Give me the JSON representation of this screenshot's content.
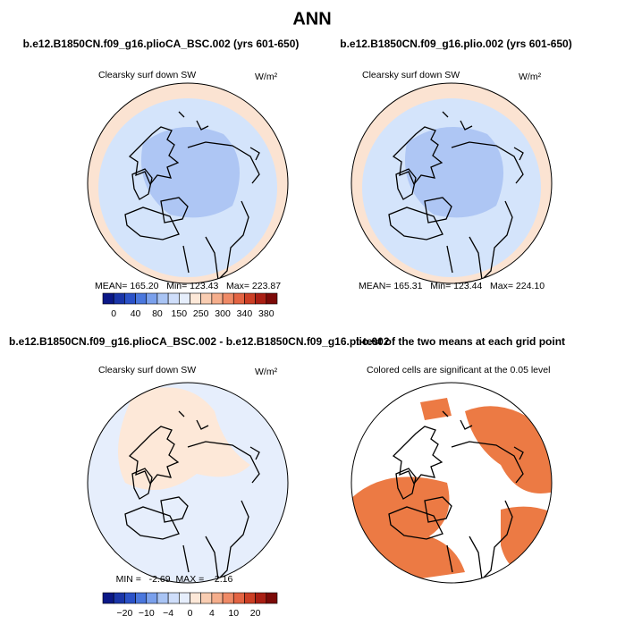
{
  "title": "ANN",
  "panels": [
    {
      "title": "b.e12.B1850CN.f09_g16.plioCA_BSC.002 (yrs 601-650)",
      "left_label": "Clearsky surf down SW",
      "units": "W/m²",
      "stats": "MEAN= 165.20   Min= 123.43   Max= 223.87"
    },
    {
      "title": "b.e12.B1850CN.f09_g16.plio.002 (yrs 601-650)",
      "left_label": "Clearsky surf down SW",
      "units": "W/m²",
      "stats": "MEAN= 165.31   Min= 123.44   Max= 224.10"
    },
    {
      "title": "b.e12.B1850CN.f09_g16.plioCA_BSC.002 - b.e12.B1850CN.f09_g16.plio.002",
      "left_label": "Clearsky surf down SW",
      "units": "W/m²",
      "stats": "MIN =   -2.69  MAX =    2.16"
    },
    {
      "title": "t-test of the two means at each grid point",
      "left_label": "Colored cells are significant at the 0.05 level"
    }
  ],
  "colorbars": [
    {
      "labels": [
        "0",
        "40",
        "80",
        "150",
        "250",
        "300",
        "340",
        "380"
      ]
    },
    {
      "labels": [
        "−20",
        "−10",
        "−4",
        "0",
        "4",
        "10",
        "20"
      ]
    }
  ],
  "colorbar_colors": [
    "#0b1887",
    "#1a35a8",
    "#2b52c8",
    "#4a77dd",
    "#7aa0ec",
    "#a9c4f4",
    "#cfdefa",
    "#e6eefc",
    "#fde8d8",
    "#f9cdb2",
    "#f5ae8c",
    "#ef8a66",
    "#e36443",
    "#cc3f25",
    "#aa1f14",
    "#7c0a08"
  ]
}
